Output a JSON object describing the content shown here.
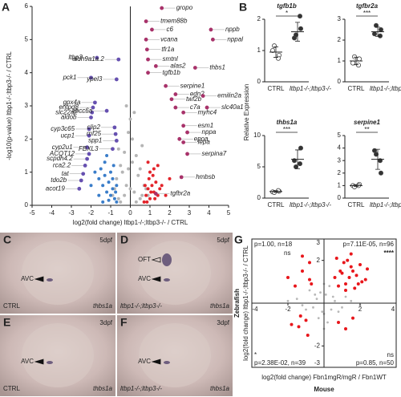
{
  "chart_data": [
    {
      "type": "volcano",
      "panel": "A",
      "xlabel": "log2(fold change) ltbp1-/-;ltbp3-/- / CTRL",
      "ylabel": "-log10(p-value) ltbp1-/-;ltbp3-/- / CTRL",
      "xlim": [
        -5,
        5
      ],
      "xticks": [
        -5,
        -4,
        -3,
        -2,
        -1,
        0,
        1,
        2,
        3,
        4,
        5
      ],
      "ylim": [
        0,
        6
      ],
      "yticks": [
        0,
        1,
        2,
        3,
        4,
        5,
        6
      ],
      "series": [
        {
          "color": "#b5b5b5",
          "x": [
            -0.9,
            -0.7,
            -0.5,
            -0.3,
            -0.1,
            0.1,
            0.3,
            0.5,
            0.7,
            0.9,
            -0.8,
            -0.4,
            0,
            0.4,
            0.8,
            -0.6,
            -0.2,
            0.2,
            0.6,
            -0.5,
            0.5,
            -0.3,
            0.3,
            0,
            -0.1,
            0.1,
            -0.6,
            0.6,
            -0.2,
            0.2
          ],
          "values": [
            0.3,
            0.8,
            1.2,
            1.6,
            2.2,
            2.0,
            1.5,
            1.1,
            0.6,
            0.3,
            0.5,
            1.0,
            2.6,
            0.9,
            0.5,
            0.2,
            0.6,
            0.4,
            0.3,
            0.1,
            0.2,
            0.3,
            0.1,
            0.5,
            1.1,
            1.3,
            1.7,
            1.8,
            3.0,
            2.8
          ]
        },
        {
          "color": "#3a7dc9",
          "x": [
            -1.6,
            -1.4,
            -1.3,
            -1.2,
            -1.1,
            -1.0,
            -0.9,
            -0.8,
            -0.7,
            -1.5,
            -1.3,
            -1.1,
            -0.9,
            -0.75,
            -1.2,
            -1.0,
            -0.85,
            -0.7,
            -1.4,
            -1.6,
            -1.8,
            -2.0
          ],
          "values": [
            0.3,
            0.6,
            0.9,
            0.4,
            0.7,
            1.0,
            0.5,
            0.2,
            0.1,
            1.1,
            1.3,
            0.15,
            0.8,
            0.4,
            1.5,
            0.3,
            1.2,
            0.6,
            0.1,
            0.8,
            1.0,
            0.6
          ]
        },
        {
          "color": "#e3242b",
          "x": [
            0.7,
            0.8,
            0.9,
            1.0,
            1.1,
            1.2,
            1.3,
            1.4,
            1.5,
            0.75,
            0.85,
            0.95,
            1.05,
            1.15,
            1.25,
            1.6,
            1.8,
            2.0,
            1.0,
            1.2,
            0.9,
            1.4
          ],
          "values": [
            0.1,
            0.3,
            0.5,
            0.2,
            0.6,
            0.4,
            0.7,
            0.3,
            0.5,
            0.6,
            0.1,
            0.8,
            0.4,
            0.9,
            0.2,
            0.6,
            0.3,
            0.8,
            1.0,
            1.1,
            1.3,
            1.2
          ]
        },
        {
          "color": "#6650b0",
          "x": [
            -1.7,
            -2.0,
            -1.8,
            -1.9,
            -1.95,
            -2.0,
            -2.1,
            -2.1,
            -2.2,
            -2.1,
            -2.2,
            -2.3,
            -2.4,
            -2.5,
            -2.6,
            -1.2,
            -0.6,
            -0.7,
            -0.8,
            -0.75,
            -0.7,
            -0.9
          ],
          "values": [
            4.45,
            3.85,
            3.1,
            2.95,
            2.8,
            2.65,
            2.3,
            2.1,
            1.75,
            1.55,
            1.4,
            1.2,
            0.95,
            0.75,
            0.5,
            2.85,
            4.4,
            3.8,
            2.35,
            2.15,
            1.95,
            1.7
          ],
          "labels": [
            "ltbp3",
            "pck1",
            "gpx4a",
            "entpd8",
            "slc22a2",
            "aldob",
            "cyp3c65",
            "ucp1",
            "cyp2u1",
            "ACOT12",
            "scpdh4.2",
            "rca2.2",
            "tat",
            "tdo2b",
            "acot19",
            "abcc6a",
            "aldh9a1a.2",
            "ypel3",
            "clip2",
            "rnf25",
            "spp1",
            "FBXL3"
          ]
        },
        {
          "color": "#a8326a",
          "x": [
            1.6,
            4.1,
            4.2,
            0.8,
            1.1,
            0.8,
            0.85,
            0.9,
            1.3,
            0.9,
            1.8,
            3.3,
            2.3,
            2.1,
            2.3,
            2.7,
            3.7,
            3.9,
            2.7,
            2.9,
            2.7,
            2.5,
            2.9,
            2.6,
            1.3
          ],
          "values": [
            5.95,
            5.3,
            5.0,
            5.55,
            5.3,
            5.0,
            4.7,
            4.4,
            4.2,
            4.0,
            3.6,
            4.15,
            3.35,
            3.2,
            2.95,
            2.8,
            3.3,
            2.95,
            2.4,
            2.2,
            1.9,
            2.0,
            1.55,
            0.85,
            0.35
          ],
          "labels": [
            "gropo",
            "nppb",
            "nppal",
            "tmem88b",
            "c6",
            "vcana",
            "tfr1a",
            "smtnl",
            "alas2",
            "tgfb1b",
            "serpine1",
            "thbs1",
            "edn2",
            "twf2b",
            "c7a",
            "myhc4",
            "emilin2a",
            "slc40a1",
            "esm1",
            "nppa",
            "lepa",
            "epoa",
            "serpina7",
            "hmbsb",
            "tgfbr2a"
          ]
        }
      ]
    },
    {
      "type": "dotplot",
      "panel": "B",
      "ylabel": "Relative Expression",
      "title": "tgfb1b",
      "categories": [
        "CTRL",
        "ltbp1-/-;ltbp3-/-"
      ],
      "ylim": [
        0,
        2
      ],
      "yticks": [
        0,
        1,
        2
      ],
      "points": [
        [
          1.0,
          0.85,
          1.15,
          0.75
        ],
        [
          1.4,
          1.7,
          1.5,
          2.1
        ]
      ],
      "means": [
        0.95,
        1.6
      ],
      "sd": [
        0.17,
        0.3
      ],
      "significance": "*"
    },
    {
      "type": "dotplot",
      "title": "tgfbr2a",
      "categories": [
        "CTRL",
        "ltbp1-/-;ltbp3-/-"
      ],
      "ylim": [
        0,
        3
      ],
      "yticks": [
        0,
        1,
        2,
        3
      ],
      "points": [
        [
          0.9,
          1.1,
          1.2,
          0.8
        ],
        [
          2.3,
          2.5,
          2.7,
          2.2
        ]
      ],
      "means": [
        1.0,
        2.4
      ],
      "sd": [
        0.18,
        0.22
      ],
      "significance": "***"
    },
    {
      "type": "dotplot",
      "title": "thbs1a",
      "categories": [
        "CTRL",
        "ltbp1-/-;ltbp3-/-"
      ],
      "ylim": [
        0,
        10
      ],
      "yticks": [
        0,
        5,
        10
      ],
      "points": [
        [
          1.0,
          1.1,
          0.9,
          1.2
        ],
        [
          6.0,
          8.0,
          5.0,
          5.5
        ]
      ],
      "means": [
        1.05,
        6.2
      ],
      "sd": [
        0.13,
        1.5
      ],
      "significance": "***"
    },
    {
      "type": "dotplot",
      "title": "serpine1",
      "categories": [
        "CTRL",
        "ltbp1-/-;ltbp3-/-"
      ],
      "ylim": [
        0,
        5
      ],
      "yticks": [
        0,
        1,
        2,
        3,
        4,
        5
      ],
      "points": [
        [
          1.0,
          1.1,
          0.9,
          1.0
        ],
        [
          3.8,
          2.0,
          3.5,
          3.0
        ]
      ],
      "means": [
        1.0,
        3.1
      ],
      "sd": [
        0.08,
        0.8
      ],
      "significance": "**"
    },
    {
      "type": "quadrant",
      "panel": "G",
      "xlabel": "log2(fold change) Fbn1mgR/mgR / Fbn1WT",
      "xlabel2": "Mouse",
      "ylabel": "log2(fold change) ltbp1-/-;ltbp3-/- / CTRL",
      "ylabel2": "Zebrafish",
      "xlim": [
        -4,
        4
      ],
      "xticks": [
        -4,
        -2,
        2,
        4
      ],
      "ylim": [
        -3,
        3
      ],
      "yticks": [
        -3,
        -2,
        2,
        3
      ],
      "series": [
        {
          "color": "#b8b8b8",
          "x": [
            -1.5,
            -1,
            -0.5,
            0,
            0.5,
            1,
            1.5,
            -0.8,
            -0.3,
            0.3,
            0.8,
            -1.2,
            1.2,
            0,
            -0.6,
            0.6,
            0.2,
            -0.2,
            -2,
            2,
            -0.4,
            0.4,
            0,
            0.1,
            -0.1
          ],
          "values": [
            0.2,
            -0.3,
            0.4,
            -0.5,
            0.3,
            -0.2,
            0.1,
            0.6,
            -0.7,
            0.8,
            -0.4,
            -0.1,
            0.3,
            0.9,
            -0.2,
            0.1,
            -0.9,
            0.5,
            0.1,
            -0.1,
            0.2,
            -0.3,
            -1.2,
            0.4,
            -0.4
          ]
        },
        {
          "color": "#e8161b",
          "x": [
            0.6,
            0.9,
            1.2,
            1.5,
            1.8,
            2.1,
            2.4,
            0.8,
            1.1,
            1.4,
            1.7,
            2.0,
            2.3,
            0.7,
            1.0,
            1.3,
            1.6,
            1.9,
            1.2,
            1.5,
            -0.8,
            -1.2,
            -1.6,
            -2.0,
            -1.0,
            -1.4,
            -0.9,
            -1.3,
            -1.8,
            -0.7,
            0.8,
            1.2,
            1.6,
            -0.8,
            -1.2
          ],
          "values": [
            1.2,
            1.5,
            0.9,
            1.7,
            1.3,
            1.0,
            1.6,
            0.8,
            1.9,
            1.2,
            0.7,
            1.8,
            1.1,
            2.1,
            1.4,
            2.0,
            1.5,
            0.9,
            0.6,
            2.3,
            1.1,
            1.5,
            0.8,
            1.2,
            -0.8,
            -1.1,
            -1.5,
            -0.6,
            -1.0,
            0.9,
            -0.9,
            -1.2,
            -0.7,
            1.9,
            2.2
          ]
        }
      ],
      "quadrant_labels": [
        {
          "stat": "p=1.00, n=18",
          "sig": "ns"
        },
        {
          "stat": "p=7.11E-05, n=96",
          "sig": "****"
        },
        {
          "stat": "p=2.38E-02, n=39",
          "sig": "*"
        },
        {
          "stat": "p=0.85, n=50",
          "sig": "ns"
        }
      ]
    }
  ],
  "images": [
    {
      "panel": "C",
      "stage": "5dpf",
      "genotype": "CTRL",
      "gene": "thbs1a",
      "annotations": [
        "AVC"
      ]
    },
    {
      "panel": "D",
      "stage": "5dpf",
      "genotype": "ltbp1-/-;ltbp3-/-",
      "gene": "thbs1a",
      "annotations": [
        "OFT",
        "AVC"
      ]
    },
    {
      "panel": "E",
      "stage": "3dpf",
      "genotype": "CTRL",
      "gene": "thbs1a",
      "annotations": [
        "AVC"
      ]
    },
    {
      "panel": "F",
      "stage": "3dpf",
      "genotype": "ltbp1-/-;ltbp3-/-",
      "gene": "thbs1a",
      "annotations": [
        "AVC"
      ]
    }
  ]
}
